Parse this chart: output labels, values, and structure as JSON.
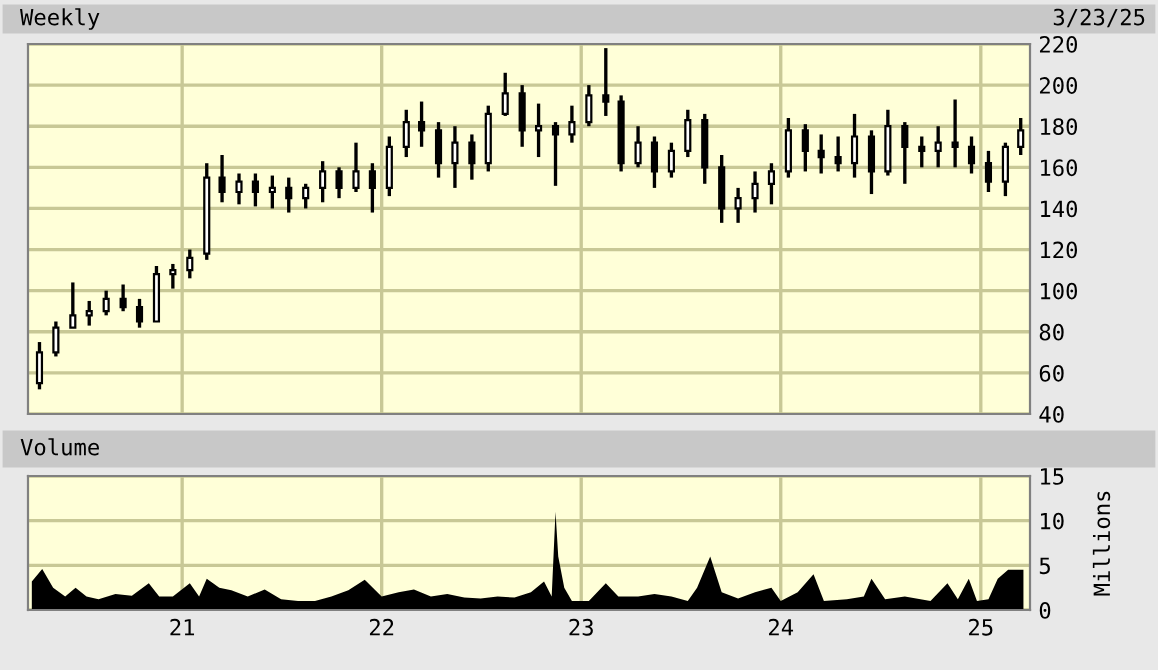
{
  "chart_data": [
    {
      "type": "candlestick",
      "title": "Weekly",
      "annotations": [
        "3/23/25"
      ],
      "color": "#000000",
      "grid": true,
      "tick_labels": "y",
      "x": [
        "2020-04-15",
        "2020-05-15",
        "2020-06-15",
        "2020-07-15",
        "2020-08-15",
        "2020-09-15",
        "2020-10-15",
        "2020-11-15",
        "2020-12-15",
        "2021-01-15",
        "2021-02-15",
        "2021-03-15",
        "2021-04-15",
        "2021-05-15",
        "2021-06-15",
        "2021-07-15",
        "2021-08-15",
        "2021-09-15",
        "2021-10-15",
        "2021-11-15",
        "2021-12-15",
        "2022-01-15",
        "2022-02-15",
        "2022-03-15",
        "2022-04-15",
        "2022-05-15",
        "2022-06-15",
        "2022-07-15",
        "2022-08-15",
        "2022-09-15",
        "2022-10-15",
        "2022-11-15",
        "2022-12-15",
        "2023-01-15",
        "2023-02-15",
        "2023-03-15",
        "2023-04-15",
        "2023-05-15",
        "2023-06-15",
        "2023-07-15",
        "2023-08-15",
        "2023-09-15",
        "2023-10-15",
        "2023-11-15",
        "2023-12-15",
        "2024-01-15",
        "2024-02-15",
        "2024-03-15",
        "2024-04-15",
        "2024-05-15",
        "2024-06-15",
        "2024-07-15",
        "2024-08-15",
        "2024-09-15",
        "2024-10-15",
        "2024-11-15",
        "2024-12-15",
        "2025-01-15",
        "2025-02-15",
        "2025-03-15"
      ],
      "ohlc": [
        [
          55,
          75,
          52,
          70
        ],
        [
          70,
          85,
          68,
          82
        ],
        [
          82,
          104,
          82,
          88
        ],
        [
          88,
          95,
          83,
          90
        ],
        [
          90,
          100,
          88,
          96
        ],
        [
          96,
          103,
          90,
          92
        ],
        [
          92,
          96,
          82,
          85
        ],
        [
          85,
          112,
          85,
          108
        ],
        [
          108,
          113,
          101,
          110
        ],
        [
          110,
          120,
          106,
          116
        ],
        [
          118,
          162,
          115,
          155
        ],
        [
          155,
          166,
          143,
          148
        ],
        [
          148,
          157,
          142,
          153
        ],
        [
          153,
          157,
          141,
          148
        ],
        [
          148,
          156,
          140,
          150
        ],
        [
          150,
          155,
          138,
          145
        ],
        [
          145,
          152,
          140,
          150
        ],
        [
          150,
          163,
          143,
          158
        ],
        [
          158,
          160,
          145,
          150
        ],
        [
          150,
          172,
          148,
          158
        ],
        [
          158,
          162,
          138,
          150
        ],
        [
          150,
          175,
          146,
          170
        ],
        [
          170,
          188,
          165,
          182
        ],
        [
          182,
          192,
          170,
          178
        ],
        [
          178,
          182,
          155,
          162
        ],
        [
          162,
          180,
          150,
          172
        ],
        [
          172,
          176,
          154,
          162
        ],
        [
          162,
          190,
          158,
          186
        ],
        [
          186,
          206,
          185,
          196
        ],
        [
          196,
          200,
          170,
          178
        ],
        [
          178,
          191,
          165,
          180
        ],
        [
          180,
          182,
          151,
          176
        ],
        [
          176,
          190,
          172,
          182
        ],
        [
          182,
          200,
          180,
          195
        ],
        [
          195,
          218,
          185,
          192
        ],
        [
          192,
          195,
          158,
          162
        ],
        [
          162,
          180,
          160,
          172
        ],
        [
          172,
          175,
          150,
          158
        ],
        [
          158,
          172,
          155,
          168
        ],
        [
          168,
          188,
          165,
          183
        ],
        [
          183,
          186,
          152,
          160
        ],
        [
          160,
          166,
          133,
          140
        ],
        [
          140,
          150,
          133,
          145
        ],
        [
          145,
          158,
          138,
          152
        ],
        [
          152,
          162,
          142,
          158
        ],
        [
          158,
          184,
          155,
          178
        ],
        [
          178,
          181,
          158,
          168
        ],
        [
          168,
          176,
          157,
          165
        ],
        [
          165,
          175,
          158,
          162
        ],
        [
          162,
          186,
          155,
          175
        ],
        [
          175,
          178,
          147,
          158
        ],
        [
          158,
          188,
          156,
          180
        ],
        [
          180,
          182,
          152,
          170
        ],
        [
          170,
          175,
          160,
          168
        ],
        [
          168,
          180,
          160,
          172
        ],
        [
          172,
          193,
          160,
          170
        ],
        [
          170,
          175,
          157,
          162
        ],
        [
          162,
          168,
          148,
          153
        ],
        [
          153,
          172,
          146,
          170
        ],
        [
          170,
          184,
          166,
          178
        ]
      ],
      "xlim": [
        "2020-03-25",
        "2025-04-01"
      ],
      "xticks": [
        {
          "value": "2021-01-01",
          "label": null
        },
        {
          "value": "2022-01-01",
          "label": null
        },
        {
          "value": "2023-01-01",
          "label": null
        },
        {
          "value": "2024-01-01",
          "label": null
        },
        {
          "value": "2025-01-01",
          "label": null
        }
      ],
      "ylim": [
        40,
        220
      ],
      "yticks": [
        40,
        60,
        80,
        100,
        120,
        140,
        160,
        180,
        200,
        220
      ]
    },
    {
      "type": "area",
      "title": "Volume",
      "y2label": "Millions",
      "grid": true,
      "color": "#000000",
      "x": [
        "2020-04-01",
        "2020-04-20",
        "2020-05-10",
        "2020-06-01",
        "2020-06-20",
        "2020-07-10",
        "2020-08-01",
        "2020-09-01",
        "2020-10-01",
        "2020-11-01",
        "2020-11-20",
        "2020-12-15",
        "2021-01-15",
        "2021-02-01",
        "2021-02-15",
        "2021-03-10",
        "2021-04-01",
        "2021-05-01",
        "2021-06-01",
        "2021-07-01",
        "2021-08-01",
        "2021-09-01",
        "2021-10-01",
        "2021-11-01",
        "2021-12-01",
        "2022-01-01",
        "2022-02-01",
        "2022-03-01",
        "2022-04-01",
        "2022-05-01",
        "2022-06-01",
        "2022-07-01",
        "2022-08-01",
        "2022-09-01",
        "2022-10-01",
        "2022-10-25",
        "2022-11-08",
        "2022-11-15",
        "2022-11-20",
        "2022-12-01",
        "2022-12-15",
        "2023-01-15",
        "2023-02-15",
        "2023-03-10",
        "2023-04-15",
        "2023-05-15",
        "2023-06-15",
        "2023-07-15",
        "2023-08-01",
        "2023-08-25",
        "2023-09-15",
        "2023-10-15",
        "2023-11-15",
        "2023-12-15",
        "2024-01-01",
        "2024-02-01",
        "2024-03-01",
        "2024-03-20",
        "2024-05-01",
        "2024-06-01",
        "2024-06-15",
        "2024-07-10",
        "2024-08-15",
        "2024-10-01",
        "2024-11-01",
        "2024-11-20",
        "2024-12-10",
        "2024-12-25",
        "2025-01-15",
        "2025-02-01",
        "2025-02-20",
        "2025-03-20"
      ],
      "values": [
        3.2,
        4.6,
        2.5,
        1.5,
        2.5,
        1.5,
        1.2,
        1.8,
        1.6,
        3.0,
        1.5,
        1.5,
        3.0,
        1.5,
        3.5,
        2.5,
        2.2,
        1.5,
        2.3,
        1.2,
        1.0,
        1.0,
        1.5,
        2.2,
        3.4,
        1.5,
        2.0,
        2.3,
        1.5,
        1.8,
        1.4,
        1.3,
        1.5,
        1.4,
        2.0,
        3.2,
        1.5,
        11.0,
        6.0,
        2.5,
        1.0,
        1.0,
        3.0,
        1.5,
        1.5,
        1.8,
        1.5,
        1.0,
        2.5,
        6.0,
        2.0,
        1.3,
        2.0,
        2.5,
        1.0,
        2.0,
        4.0,
        1.0,
        1.2,
        1.5,
        3.5,
        1.2,
        1.5,
        1.0,
        3.0,
        1.2,
        3.5,
        1.0,
        1.2,
        3.5,
        4.5,
        4.5
      ],
      "xlim": [
        "2020-03-25",
        "2025-04-01"
      ],
      "xticks": [
        {
          "value": "2021-01-01",
          "label": "21"
        },
        {
          "value": "2022-01-01",
          "label": "22"
        },
        {
          "value": "2023-01-01",
          "label": "23"
        },
        {
          "value": "2024-01-01",
          "label": "24"
        },
        {
          "value": "2025-01-01",
          "label": "25"
        }
      ],
      "ylim": [
        0,
        15
      ],
      "yticks": [
        0,
        5,
        10,
        15
      ]
    }
  ]
}
